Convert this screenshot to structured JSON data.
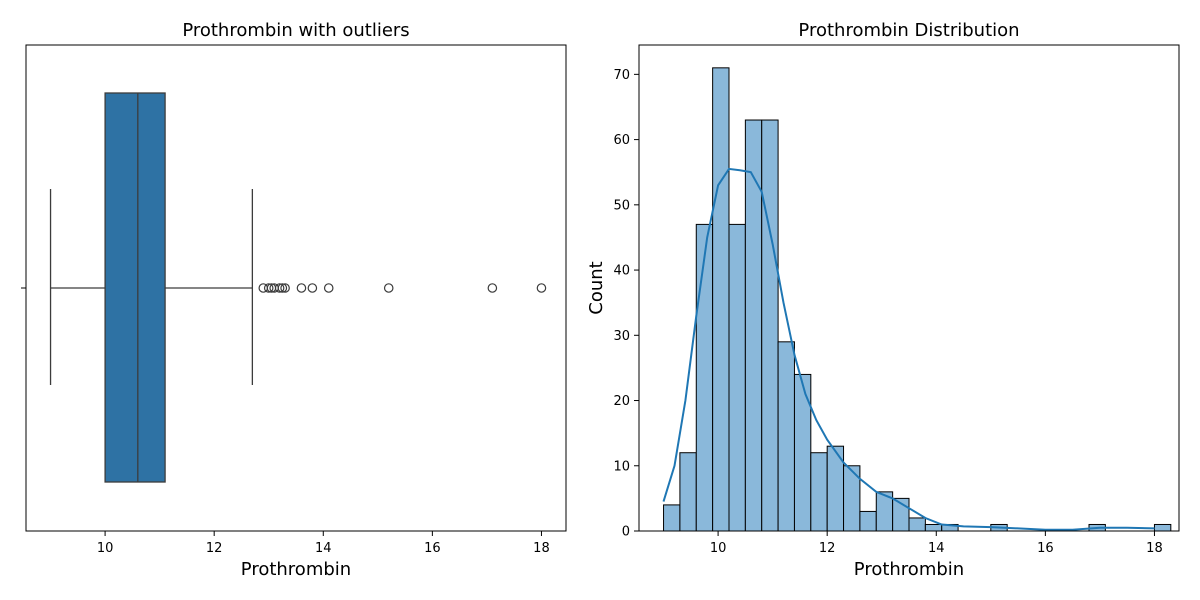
{
  "chart_data": [
    {
      "type": "box",
      "title": "Prothrombin with outliers",
      "xlabel": "Prothrombin",
      "ylabel": "",
      "xlim": [
        8.55,
        18.45
      ],
      "xticks": [
        10,
        12,
        14,
        16,
        18
      ],
      "box": {
        "whisker_low": 9.0,
        "q1": 10.0,
        "median": 10.6,
        "q3": 11.1,
        "whisker_high": 12.7,
        "color": "#2e72a4"
      },
      "outliers": [
        12.9,
        13.0,
        13.05,
        13.1,
        13.2,
        13.25,
        13.3,
        13.6,
        13.8,
        14.1,
        15.2,
        17.1,
        18.0
      ]
    },
    {
      "type": "histogram",
      "title": "Prothrombin Distribution",
      "xlabel": "Prothrombin",
      "ylabel": "Count",
      "xlim": [
        8.55,
        18.45
      ],
      "ylim": [
        0,
        74.5
      ],
      "xticks": [
        10,
        12,
        14,
        16,
        18
      ],
      "yticks": [
        0,
        10,
        20,
        30,
        40,
        50,
        60,
        70
      ],
      "bin_start": 9.0,
      "bin_width": 0.3,
      "counts": [
        4,
        12,
        47,
        71,
        47,
        63,
        63,
        29,
        24,
        12,
        13,
        10,
        3,
        6,
        5,
        2,
        1,
        1,
        0,
        0,
        1,
        0,
        0,
        0,
        0,
        0,
        1,
        0,
        0,
        0,
        1
      ],
      "bar_color": "#8ab8da",
      "kde": {
        "color": "#1f77b4",
        "x": [
          9.0,
          9.2,
          9.4,
          9.6,
          9.8,
          10.0,
          10.2,
          10.4,
          10.6,
          10.8,
          11.0,
          11.2,
          11.4,
          11.6,
          11.8,
          12.0,
          12.3,
          12.6,
          12.9,
          13.2,
          13.5,
          13.8,
          14.1,
          14.5,
          15.0,
          15.5,
          16.0,
          16.5,
          17.0,
          17.5,
          18.0
        ],
        "y": [
          4.5,
          10,
          20,
          33,
          45,
          53,
          55.5,
          55.3,
          55,
          52,
          44,
          35,
          27,
          21,
          17,
          14,
          10.5,
          8,
          6,
          5,
          3.5,
          2,
          1,
          0.7,
          0.6,
          0.4,
          0.2,
          0.2,
          0.5,
          0.5,
          0.4
        ]
      }
    }
  ]
}
